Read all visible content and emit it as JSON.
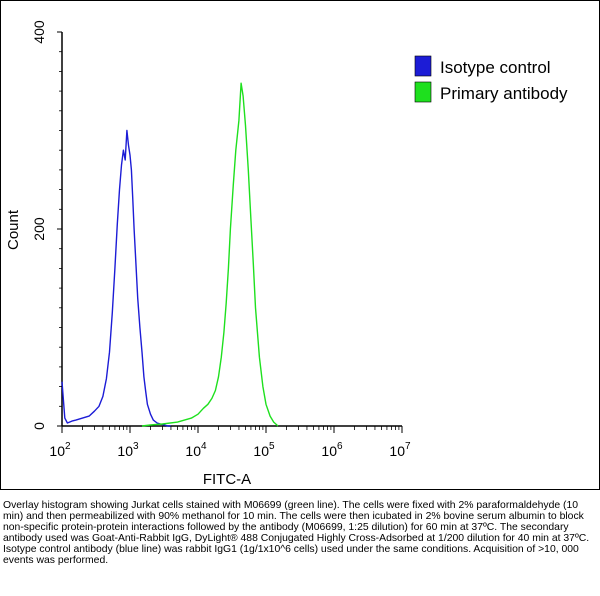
{
  "chart_data": {
    "type": "area",
    "xlabel": "FITC-A",
    "ylabel": "Count",
    "x_scale": "log",
    "xlim": [
      100,
      10000000
    ],
    "ylim": [
      0,
      400
    ],
    "x_ticks": [
      {
        "base": "10",
        "exp": "2"
      },
      {
        "base": "10",
        "exp": "3"
      },
      {
        "base": "10",
        "exp": "4"
      },
      {
        "base": "10",
        "exp": "5"
      },
      {
        "base": "10",
        "exp": "6"
      },
      {
        "base": "10",
        "exp": "7"
      }
    ],
    "y_ticks": [
      "0",
      "200",
      "400"
    ],
    "y_tick_values": [
      0,
      200,
      400
    ],
    "legend_position": "top-right",
    "grid": false,
    "series": [
      {
        "name": "Isotype control",
        "color": "#1c1cd6",
        "x": [
          100,
          110,
          120,
          140,
          160,
          200,
          250,
          300,
          350,
          400,
          450,
          500,
          550,
          600,
          650,
          700,
          750,
          800,
          850,
          900,
          950,
          1000,
          1050,
          1100,
          1150,
          1200,
          1300,
          1400,
          1500,
          1600,
          1700,
          1800,
          2000,
          2200,
          2500,
          2800,
          3200,
          3600,
          4000
        ],
        "y": [
          45,
          8,
          3,
          5,
          6,
          8,
          10,
          15,
          20,
          30,
          48,
          75,
          115,
          160,
          205,
          240,
          265,
          280,
          270,
          300,
          285,
          275,
          260,
          230,
          200,
          175,
          130,
          100,
          75,
          50,
          35,
          22,
          12,
          6,
          3,
          2,
          1,
          0,
          0
        ]
      },
      {
        "name": "Primary antibody",
        "color": "#1ee01e",
        "x": [
          1500,
          2000,
          3000,
          5000,
          8000,
          10000,
          12000,
          14000,
          16000,
          18000,
          20000,
          22000,
          24000,
          26000,
          28000,
          30000,
          33000,
          36000,
          40000,
          43000,
          46000,
          50000,
          55000,
          60000,
          65000,
          70000,
          80000,
          90000,
          100000,
          115000,
          130000,
          150000
        ],
        "y": [
          0,
          1,
          2,
          4,
          8,
          12,
          18,
          22,
          28,
          36,
          50,
          70,
          95,
          125,
          160,
          200,
          245,
          280,
          310,
          348,
          335,
          305,
          260,
          210,
          165,
          120,
          70,
          40,
          22,
          10,
          4,
          0
        ]
      }
    ]
  },
  "caption": "Overlay histogram showing Jurkat cells stained with M06699 (green line). The cells were fixed with 2% paraformaldehyde (10 min) and then permeabilized with 90% methanol for 10 min. The cells were then icubated in 2% bovine serum albumin to block non-specific protein-protein interactions followed by the antibody (M06699, 1:25 dilution) for 60 min at 37ºC. The secondary antibody used was Goat-Anti-Rabbit IgG, DyLight® 488 Conjugated Highly Cross-Adsorbed at 1/200 dilution for 40 min at 37ºC. Isotype control antibody (blue line) was rabbit IgG1 (1g/1x10^6 cells) used under the same conditions. Acquisition of >10, 000 events was performed."
}
